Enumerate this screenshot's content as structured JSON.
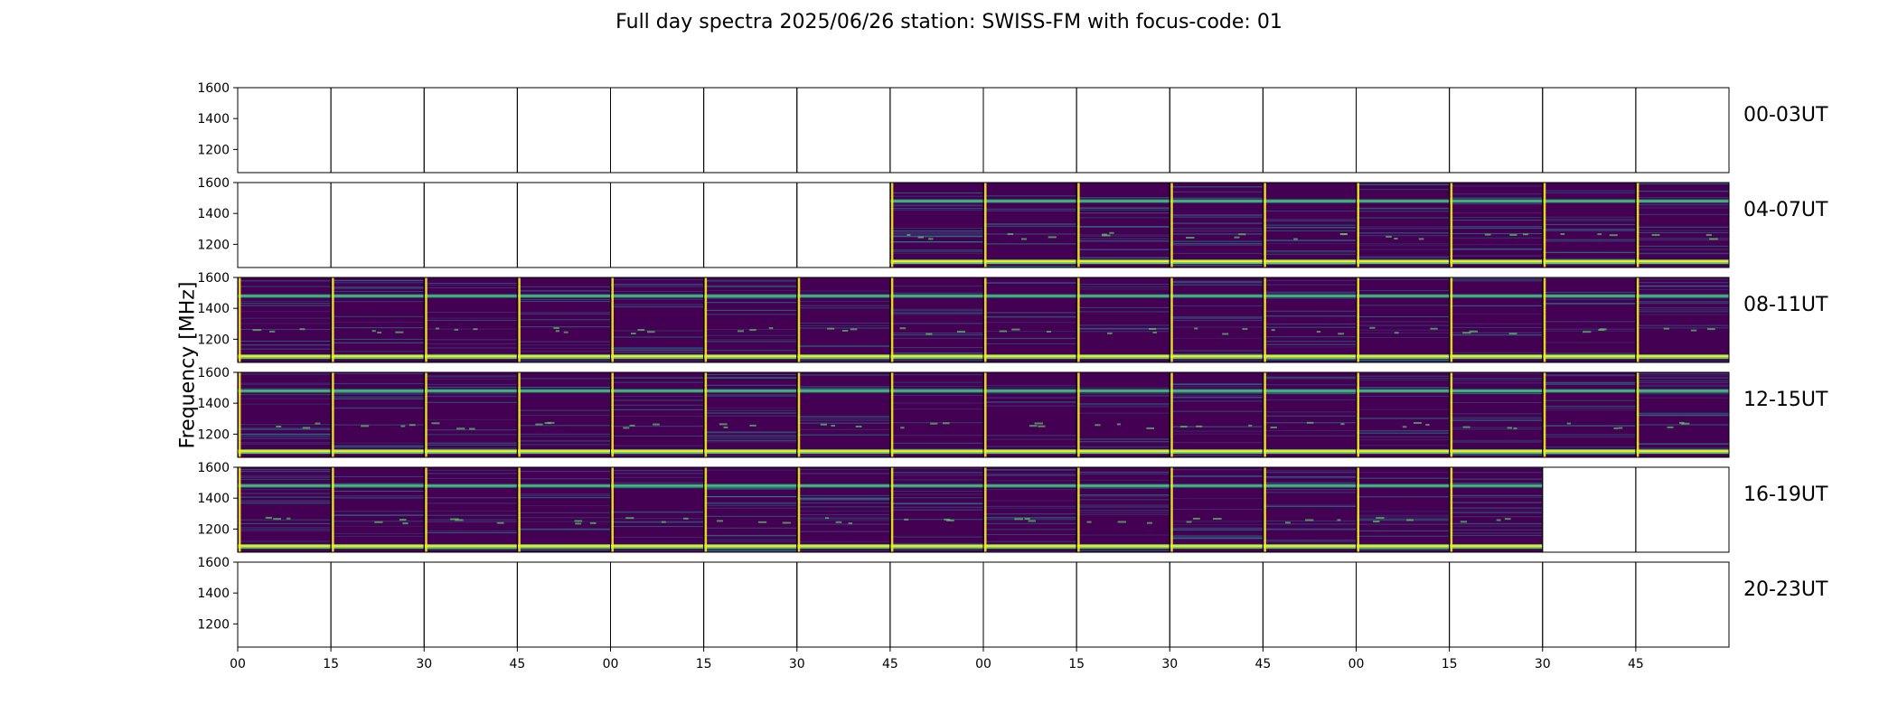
{
  "title": "Full day spectra 2025/06/26 station: SWISS-FM with focus-code: 01",
  "chart_data": {
    "type": "heatmap",
    "title": "Full day spectra 2025/06/26 station: SWISS-FM with focus-code: 01",
    "ylabel": "Frequency [MHz]",
    "xlabel": "",
    "ylim": [
      1050,
      1600
    ],
    "y_ticks": [
      "1200",
      "1400",
      "1600"
    ],
    "x_ticks": [
      "00",
      "15",
      "30",
      "45",
      "00",
      "15",
      "30",
      "45",
      "00",
      "15",
      "30",
      "45",
      "00",
      "15",
      "30",
      "45"
    ],
    "colormap": "viridis",
    "colors": {
      "background": "#440154",
      "mid": "#31688e",
      "teal": "#21918c",
      "green": "#5ec962",
      "bright": "#fde725"
    },
    "rows": [
      {
        "label": "00-03UT",
        "filled_slots": []
      },
      {
        "label": "04-07UT",
        "filled_slots": [
          7,
          8,
          9,
          10,
          11,
          12,
          13,
          14,
          15
        ]
      },
      {
        "label": "08-11UT",
        "filled_slots": [
          0,
          1,
          2,
          3,
          4,
          5,
          6,
          7,
          8,
          9,
          10,
          11,
          12,
          13,
          14,
          15
        ]
      },
      {
        "label": "12-15UT",
        "filled_slots": [
          0,
          1,
          2,
          3,
          4,
          5,
          6,
          7,
          8,
          9,
          10,
          11,
          12,
          13,
          14,
          15
        ]
      },
      {
        "label": "16-19UT",
        "filled_slots": [
          0,
          1,
          2,
          3,
          4,
          5,
          6,
          7,
          8,
          9,
          10,
          11,
          12,
          13
        ]
      },
      {
        "label": "20-23UT",
        "filled_slots": []
      }
    ],
    "emission_bands_mhz": [
      1090,
      1480,
      1260
    ],
    "grid": false
  }
}
